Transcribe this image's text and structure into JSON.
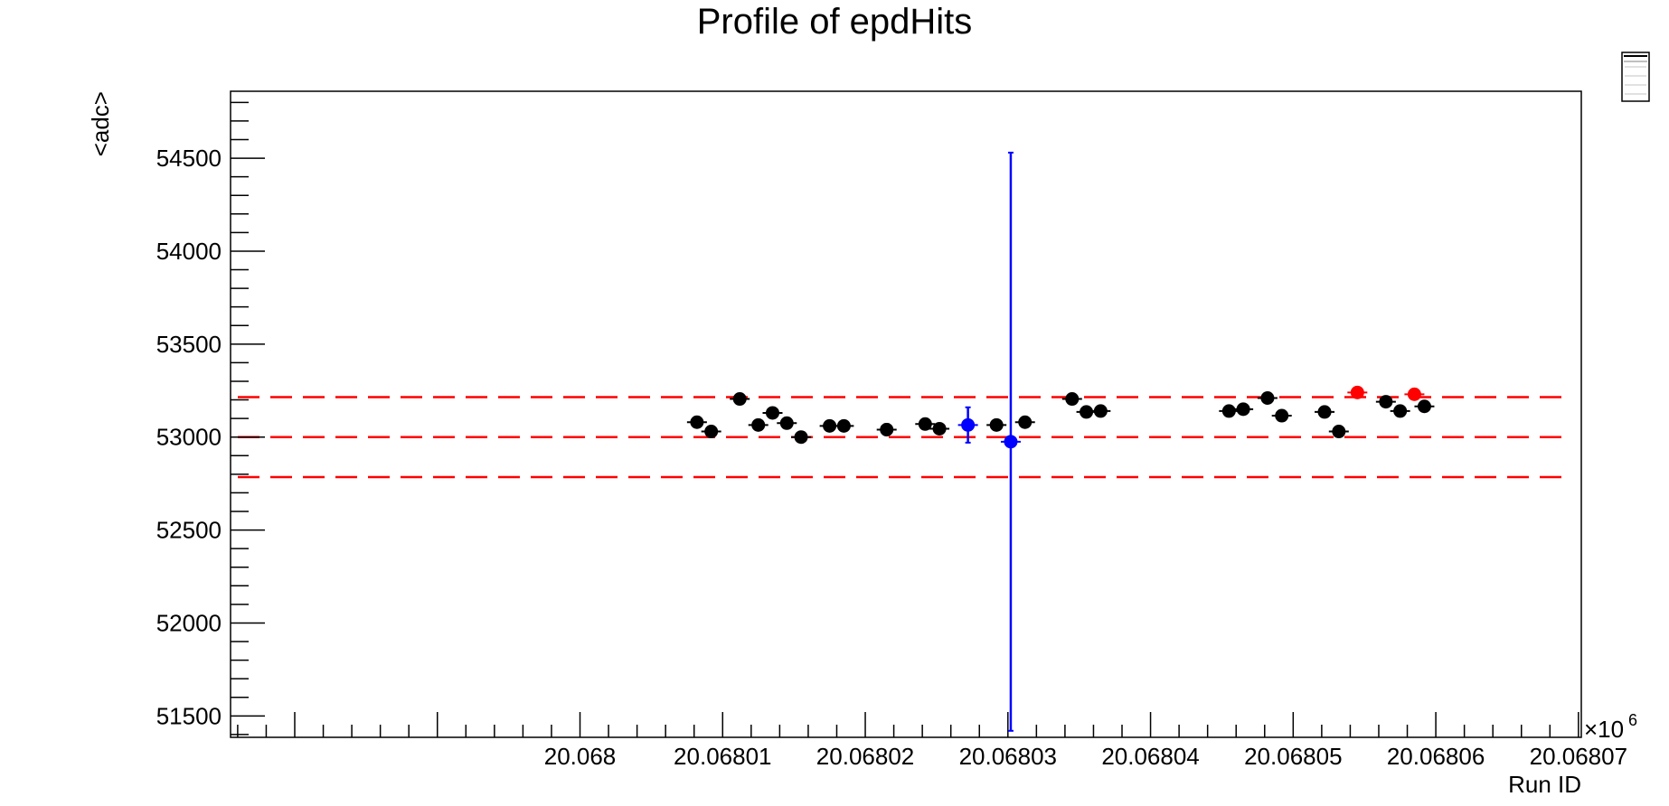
{
  "chart_data": {
    "type": "scatter",
    "title": "Profile of epdHits",
    "xlabel": "Run ID",
    "ylabel": "<adc>",
    "xlim": [
      20.0679755,
      20.0680702
    ],
    "ylim": [
      51385,
      54860
    ],
    "x_exponent_label": "×10",
    "x_exponent_power": "6",
    "x_ticks": [
      20.068,
      20.06801,
      20.06802,
      20.06803,
      20.06804,
      20.06805,
      20.06806,
      20.06807
    ],
    "x_tick_labels": [
      "20.068",
      "20.06801",
      "20.06802",
      "20.06803",
      "20.06804",
      "20.06805",
      "20.06806",
      "20.06807"
    ],
    "y_ticks": [
      51500,
      52000,
      52500,
      53000,
      53500,
      54000,
      54500
    ],
    "y_tick_labels": [
      "51500",
      "52000",
      "52500",
      "53000",
      "53500",
      "54000",
      "54500"
    ],
    "grid": false,
    "legend": "none",
    "reference_lines": [
      {
        "y": 53215,
        "color": "#ff0000",
        "style": "dashed"
      },
      {
        "y": 53000,
        "color": "#ff0000",
        "style": "dashed"
      },
      {
        "y": 52785,
        "color": "#ff0000",
        "style": "dashed"
      }
    ],
    "points": [
      {
        "x": 20.0680082,
        "y": 53080,
        "err": 10,
        "color": "#000000"
      },
      {
        "x": 20.0680092,
        "y": 53030,
        "err": 10,
        "color": "#000000"
      },
      {
        "x": 20.0680112,
        "y": 53205,
        "err": 10,
        "color": "#000000"
      },
      {
        "x": 20.0680125,
        "y": 53065,
        "err": 10,
        "color": "#000000"
      },
      {
        "x": 20.0680135,
        "y": 53130,
        "err": 10,
        "color": "#000000"
      },
      {
        "x": 20.0680145,
        "y": 53075,
        "err": 10,
        "color": "#000000"
      },
      {
        "x": 20.0680155,
        "y": 53000,
        "err": 10,
        "color": "#000000"
      },
      {
        "x": 20.0680175,
        "y": 53060,
        "err": 10,
        "color": "#000000"
      },
      {
        "x": 20.0680185,
        "y": 53060,
        "err": 10,
        "color": "#000000"
      },
      {
        "x": 20.0680215,
        "y": 53040,
        "err": 30,
        "color": "#000000"
      },
      {
        "x": 20.0680242,
        "y": 53070,
        "err": 10,
        "color": "#000000"
      },
      {
        "x": 20.0680252,
        "y": 53045,
        "err": 10,
        "color": "#000000"
      },
      {
        "x": 20.0680272,
        "y": 53065,
        "err": 95,
        "color": "#0000ff"
      },
      {
        "x": 20.0680292,
        "y": 53065,
        "err": 10,
        "color": "#000000"
      },
      {
        "x": 20.0680302,
        "y": 52975,
        "err": 1555,
        "color": "#0000ff"
      },
      {
        "x": 20.0680312,
        "y": 53080,
        "err": 10,
        "color": "#000000"
      },
      {
        "x": 20.0680345,
        "y": 53205,
        "err": 10,
        "color": "#000000"
      },
      {
        "x": 20.0680355,
        "y": 53135,
        "err": 25,
        "color": "#000000"
      },
      {
        "x": 20.0680365,
        "y": 53140,
        "err": 10,
        "color": "#000000"
      },
      {
        "x": 20.0680455,
        "y": 53140,
        "err": 10,
        "color": "#000000"
      },
      {
        "x": 20.0680465,
        "y": 53150,
        "err": 10,
        "color": "#000000"
      },
      {
        "x": 20.0680482,
        "y": 53210,
        "err": 10,
        "color": "#000000"
      },
      {
        "x": 20.0680492,
        "y": 53115,
        "err": 10,
        "color": "#000000"
      },
      {
        "x": 20.0680522,
        "y": 53135,
        "err": 10,
        "color": "#000000"
      },
      {
        "x": 20.0680532,
        "y": 53030,
        "err": 10,
        "color": "#000000"
      },
      {
        "x": 20.0680545,
        "y": 53240,
        "err": 10,
        "color": "#ff0000"
      },
      {
        "x": 20.0680565,
        "y": 53190,
        "err": 10,
        "color": "#000000"
      },
      {
        "x": 20.0680575,
        "y": 53140,
        "err": 10,
        "color": "#000000"
      },
      {
        "x": 20.0680585,
        "y": 53230,
        "err": 10,
        "color": "#ff0000"
      },
      {
        "x": 20.0680592,
        "y": 53165,
        "err": 10,
        "color": "#000000"
      }
    ]
  }
}
